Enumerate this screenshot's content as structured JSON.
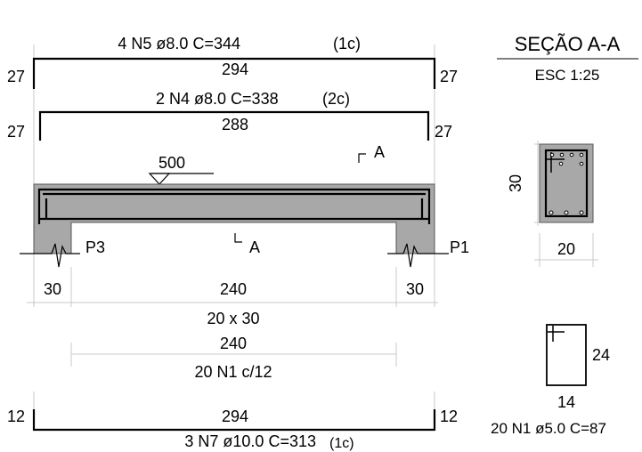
{
  "elevation": {
    "top_bar_n5": {
      "label": "4 N5 ø8.0 C=344",
      "layer": "(1c)",
      "length": "294",
      "hook_left": "27",
      "hook_right": "27"
    },
    "top_bar_n4": {
      "label": "2 N4 ø8.0 C=338",
      "layer": "(2c)",
      "length": "288",
      "hook_left": "27",
      "hook_right": "27"
    },
    "level": "500",
    "section_mark_top": "A",
    "section_mark_bottom": "A",
    "support_left": "P3",
    "support_right": "P1",
    "dim_left": "30",
    "dim_center": "240",
    "dim_right": "30",
    "beam_size": "20 x 30",
    "stirrup_span": "240",
    "stirrup_label": "20 N1 c/12",
    "bottom_bar_n7": {
      "length": "294",
      "hook_left": "12",
      "hook_right": "12",
      "label": "3 N7 ø10.0 C=313",
      "layer": "(1c)"
    }
  },
  "section": {
    "title": "SEÇÃO A-A",
    "scale": "ESC 1:25",
    "height": "30",
    "width": "20"
  },
  "stirrup_detail": {
    "height": "24",
    "width": "14",
    "label": "20 N1 ø5.0 C=87"
  },
  "colors": {
    "concrete": "#a8a8a8",
    "dimension": "#c8c8c8",
    "ink": "#000000"
  }
}
